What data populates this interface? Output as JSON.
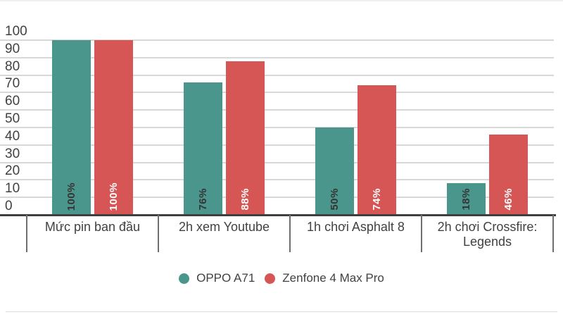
{
  "chart_data": {
    "type": "bar",
    "title": "",
    "categories": [
      "Mức pin ban đầu",
      "2h xem Youtube",
      "1h chơi Asphalt 8",
      "2h chơi Crossfire: Legends"
    ],
    "series": [
      {
        "name": "OPPO A71",
        "color": "#4B968C",
        "label_color": "#353535",
        "values": [
          100,
          76,
          50,
          18
        ],
        "labels": [
          "100%",
          "76%",
          "50%",
          "18%"
        ]
      },
      {
        "name": "Zenfone 4 Max Pro",
        "color": "#D65555",
        "label_color": "#FFFFFF",
        "values": [
          100,
          88,
          74,
          46
        ],
        "labels": [
          "100%",
          "88%",
          "74%",
          "46%"
        ]
      }
    ],
    "y_axis": {
      "min": 0,
      "max": 100,
      "step": 10,
      "tick_labels": [
        "0",
        "10",
        "20",
        "30",
        "40",
        "50",
        "60",
        "70",
        "80",
        "90",
        "100"
      ]
    },
    "grid": true,
    "legend_position": "bottom",
    "value_labels_rotated": true
  },
  "colors": {
    "grid_line": "#D8D8D8",
    "axis_line": "#404040",
    "divider_line": "#6F6F6F",
    "text": "#414141",
    "background": "#FFFFFF",
    "top_rule": "#EFEFEF",
    "bottom_rule": "#DCDCDC"
  }
}
